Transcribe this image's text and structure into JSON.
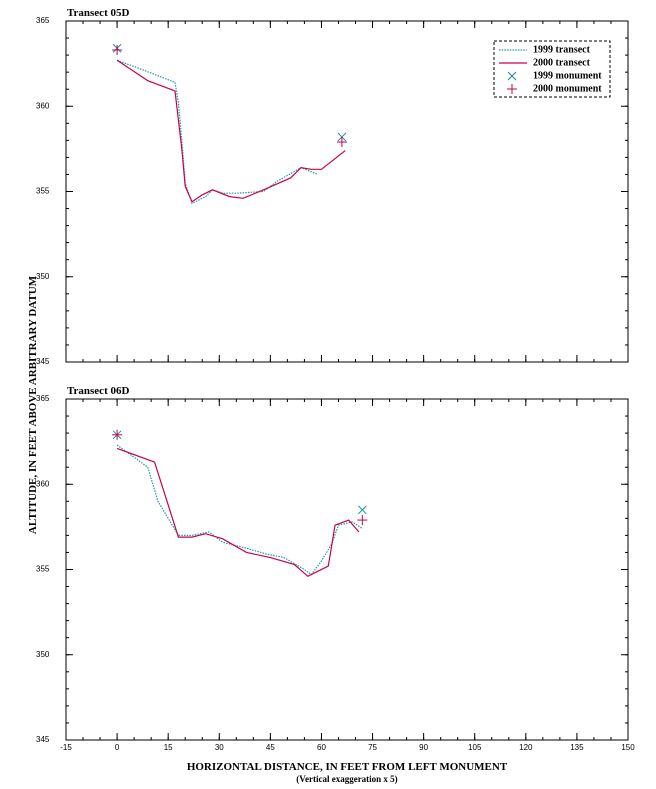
{
  "chart_data": [
    {
      "type": "line",
      "title": "Transect 05D",
      "ylabel": "ALTITUDE, IN FEET ABOVE ARBITRARY DATUM",
      "xlim": [
        -15,
        150
      ],
      "xticks": [
        -15,
        0,
        15,
        30,
        45,
        60,
        75,
        90,
        105,
        120,
        135,
        150
      ],
      "xticklabels": false,
      "ylim": [
        345,
        365
      ],
      "yticks": [
        345,
        350,
        355,
        360,
        365
      ],
      "yminor": 1,
      "xminor": 5,
      "legend": "upper right",
      "series": [
        {
          "name": "1999 transect",
          "color": "#1a9aa8",
          "style": "dotted",
          "x": [
            0,
            8,
            17,
            18,
            19,
            20,
            22,
            26,
            28,
            31,
            35,
            43,
            47,
            54,
            59
          ],
          "values": [
            362.7,
            362.1,
            361.4,
            360.2,
            358,
            355.5,
            354.3,
            354.7,
            355.1,
            354.9,
            354.9,
            355,
            355.6,
            356.4,
            356
          ]
        },
        {
          "name": "2000 transect",
          "color": "#c8004e",
          "style": "solid",
          "x": [
            0,
            9,
            17,
            19,
            20,
            22,
            25,
            28,
            33,
            37,
            43,
            51,
            54,
            57,
            60,
            67
          ],
          "values": [
            362.7,
            361.5,
            360.9,
            357.5,
            355.3,
            354.4,
            354.8,
            355.1,
            354.7,
            354.6,
            355.1,
            355.8,
            356.4,
            356.3,
            356.3,
            357.4
          ]
        },
        {
          "name": "1999 monument",
          "color": "#1a8aa0",
          "marker": "x",
          "x": [
            0,
            66
          ],
          "values": [
            363.4,
            358.2
          ]
        },
        {
          "name": "2000 monument",
          "color": "#c8004e",
          "marker": "+",
          "x": [
            0,
            66
          ],
          "values": [
            363.3,
            357.9
          ]
        }
      ]
    },
    {
      "type": "line",
      "title": "Transect 06D",
      "xlabel": "HORIZONTAL DISTANCE, IN FEET FROM LEFT MONUMENT",
      "note": "(Vertical exaggeration x 5)",
      "xlim": [
        -15,
        150
      ],
      "xticks": [
        -15,
        0,
        15,
        30,
        45,
        60,
        75,
        90,
        105,
        120,
        135,
        150
      ],
      "xticklabels": true,
      "ylim": [
        345,
        365
      ],
      "yticks": [
        345,
        350,
        355,
        360,
        365
      ],
      "yminor": 1,
      "xminor": 5,
      "legend": false,
      "series": [
        {
          "name": "1999 transect",
          "color": "#1a9aa8",
          "style": "dotted",
          "x": [
            0,
            9,
            12,
            18,
            22,
            27,
            31,
            37,
            44,
            49,
            55,
            57,
            60,
            63,
            65,
            69,
            72
          ],
          "values": [
            362.3,
            361,
            359,
            357,
            357,
            357.2,
            356.6,
            356.3,
            355.9,
            355.7,
            355,
            354.7,
            355.5,
            356.5,
            357.6,
            357.8,
            357.4
          ]
        },
        {
          "name": "2000 transect",
          "color": "#c8004e",
          "style": "solid",
          "x": [
            0,
            11,
            18,
            22,
            26,
            31,
            38,
            45,
            52,
            56,
            62,
            64,
            68,
            71
          ],
          "values": [
            362.1,
            361.3,
            356.9,
            356.9,
            357.1,
            356.8,
            356,
            355.7,
            355.3,
            354.6,
            355.2,
            357.6,
            357.9,
            357.2
          ]
        },
        {
          "name": "1999 monument",
          "color": "#1a8aa0",
          "marker": "x",
          "x": [
            0,
            72
          ],
          "values": [
            362.9,
            358.5
          ]
        },
        {
          "name": "2000 monument",
          "color": "#c8004e",
          "marker": "+",
          "x": [
            0,
            72
          ],
          "values": [
            362.9,
            357.9
          ]
        }
      ]
    }
  ]
}
